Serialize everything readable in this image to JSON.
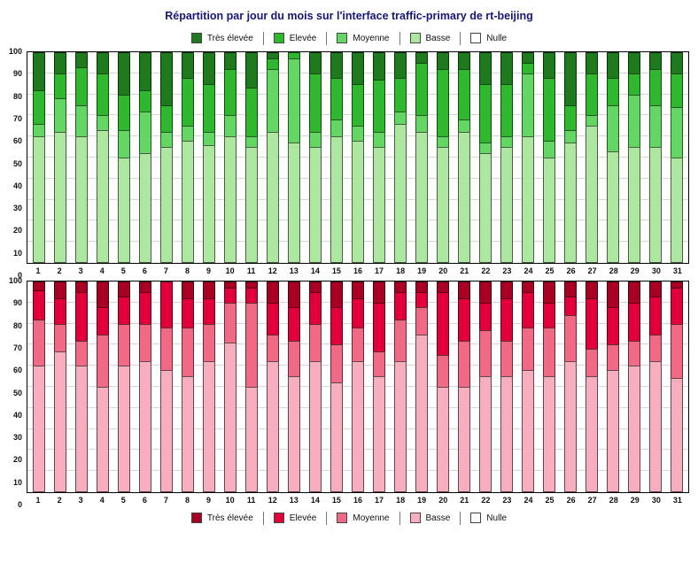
{
  "page": {
    "title": "Répartition par jour du mois sur l'interface traffic-primary de rt-beijing"
  },
  "chart_data": [
    {
      "type": "bar",
      "stacked": true,
      "orientation": "vertical",
      "legend_position": "top",
      "grid": true,
      "ylim": [
        0,
        100
      ],
      "yticks": [
        0,
        10,
        20,
        30,
        40,
        50,
        60,
        70,
        80,
        90,
        100
      ],
      "categories": [
        1,
        2,
        3,
        4,
        5,
        6,
        7,
        8,
        9,
        10,
        11,
        12,
        13,
        14,
        15,
        16,
        17,
        18,
        19,
        20,
        21,
        22,
        23,
        24,
        25,
        26,
        27,
        28,
        29,
        30,
        31
      ],
      "legend": [
        {
          "key": "tres-elevee",
          "label": "Très élevée",
          "color": "#1d7a1d"
        },
        {
          "key": "elevee",
          "label": "Elevée",
          "color": "#2eb82e"
        },
        {
          "key": "moyenne",
          "label": "Moyenne",
          "color": "#63d663"
        },
        {
          "key": "basse",
          "label": "Basse",
          "color": "#aee8a0"
        },
        {
          "key": "nulle",
          "label": "Nulle",
          "color": "#ffffff"
        }
      ],
      "series": [
        {
          "key": "basse",
          "name": "Basse",
          "color": "#aee8a0",
          "values": [
            60,
            62,
            60,
            63,
            50,
            52,
            55,
            58,
            56,
            60,
            55,
            62,
            57,
            55,
            60,
            58,
            55,
            66,
            62,
            55,
            62,
            52,
            55,
            60,
            50,
            57,
            65,
            53,
            55,
            55,
            50
          ]
        },
        {
          "key": "moyenne",
          "name": "Moyenne",
          "color": "#63d663",
          "values": [
            6,
            16,
            15,
            7,
            13,
            20,
            7,
            7,
            6,
            10,
            5,
            30,
            40,
            7,
            8,
            7,
            7,
            6,
            8,
            5,
            6,
            5,
            5,
            30,
            8,
            6,
            5,
            22,
            25,
            20,
            24
          ]
        },
        {
          "key": "elevee",
          "name": "Elevée",
          "color": "#2eb82e",
          "values": [
            16,
            12,
            18,
            20,
            17,
            10,
            13,
            23,
            23,
            22,
            23,
            5,
            3,
            28,
            20,
            20,
            25,
            16,
            25,
            32,
            24,
            28,
            25,
            5,
            30,
            12,
            20,
            13,
            10,
            17,
            16
          ]
        },
        {
          "key": "tres-elevee",
          "name": "Très élevée",
          "color": "#1d7a1d",
          "values": [
            18,
            10,
            7,
            10,
            20,
            18,
            25,
            12,
            15,
            8,
            17,
            3,
            0,
            10,
            12,
            15,
            13,
            12,
            5,
            8,
            8,
            15,
            15,
            5,
            12,
            25,
            10,
            12,
            10,
            8,
            10
          ]
        },
        {
          "key": "nulle",
          "name": "Nulle",
          "color": "#ffffff",
          "values": [
            0,
            0,
            0,
            0,
            0,
            0,
            0,
            0,
            0,
            0,
            0,
            0,
            0,
            0,
            0,
            0,
            0,
            0,
            0,
            0,
            0,
            0,
            0,
            0,
            0,
            0,
            0,
            0,
            0,
            0,
            0
          ]
        }
      ]
    },
    {
      "type": "bar",
      "stacked": true,
      "orientation": "vertical",
      "legend_position": "bottom",
      "grid": true,
      "ylim": [
        0,
        100
      ],
      "yticks": [
        0,
        10,
        20,
        30,
        40,
        50,
        60,
        70,
        80,
        90,
        100
      ],
      "categories": [
        1,
        2,
        3,
        4,
        5,
        6,
        7,
        8,
        9,
        10,
        11,
        12,
        13,
        14,
        15,
        16,
        17,
        18,
        19,
        20,
        21,
        22,
        23,
        24,
        25,
        26,
        27,
        28,
        29,
        30,
        31
      ],
      "legend": [
        {
          "key": "tres-elevee",
          "label": "Très élevée",
          "color": "#a80022"
        },
        {
          "key": "elevee",
          "label": "Elevée",
          "color": "#e1003c"
        },
        {
          "key": "moyenne",
          "label": "Moyenne",
          "color": "#f06a86"
        },
        {
          "key": "basse",
          "label": "Basse",
          "color": "#f7aebf"
        },
        {
          "key": "nulle",
          "label": "Nulle",
          "color": "#ffffff"
        }
      ],
      "series": [
        {
          "key": "basse",
          "name": "Basse",
          "color": "#f7aebf",
          "values": [
            60,
            67,
            60,
            50,
            60,
            62,
            58,
            55,
            62,
            71,
            50,
            62,
            55,
            62,
            52,
            62,
            55,
            62,
            75,
            50,
            50,
            55,
            55,
            58,
            55,
            62,
            55,
            58,
            60,
            62,
            54
          ]
        },
        {
          "key": "moyenne",
          "name": "Moyenne",
          "color": "#f06a86",
          "values": [
            22,
            13,
            12,
            25,
            20,
            18,
            20,
            23,
            18,
            19,
            40,
            13,
            17,
            18,
            18,
            16,
            12,
            20,
            13,
            15,
            22,
            22,
            17,
            20,
            23,
            22,
            13,
            12,
            12,
            13,
            26
          ]
        },
        {
          "key": "elevee",
          "name": "Elevée",
          "color": "#e1003c",
          "values": [
            14,
            12,
            23,
            13,
            13,
            15,
            22,
            14,
            12,
            7,
            7,
            15,
            16,
            15,
            18,
            14,
            23,
            13,
            7,
            30,
            20,
            13,
            20,
            17,
            12,
            9,
            24,
            18,
            18,
            18,
            17
          ]
        },
        {
          "key": "tres-elevee",
          "name": "Très élevée",
          "color": "#a80022",
          "values": [
            4,
            8,
            5,
            12,
            7,
            5,
            0,
            8,
            8,
            3,
            3,
            10,
            12,
            5,
            12,
            8,
            10,
            5,
            5,
            5,
            8,
            10,
            8,
            5,
            10,
            7,
            8,
            12,
            10,
            7,
            3
          ]
        },
        {
          "key": "nulle",
          "name": "Nulle",
          "color": "#ffffff",
          "values": [
            0,
            0,
            0,
            0,
            0,
            0,
            0,
            0,
            0,
            0,
            0,
            0,
            0,
            0,
            0,
            0,
            0,
            0,
            0,
            0,
            0,
            0,
            0,
            0,
            0,
            0,
            0,
            0,
            0,
            0,
            0
          ]
        }
      ]
    }
  ]
}
